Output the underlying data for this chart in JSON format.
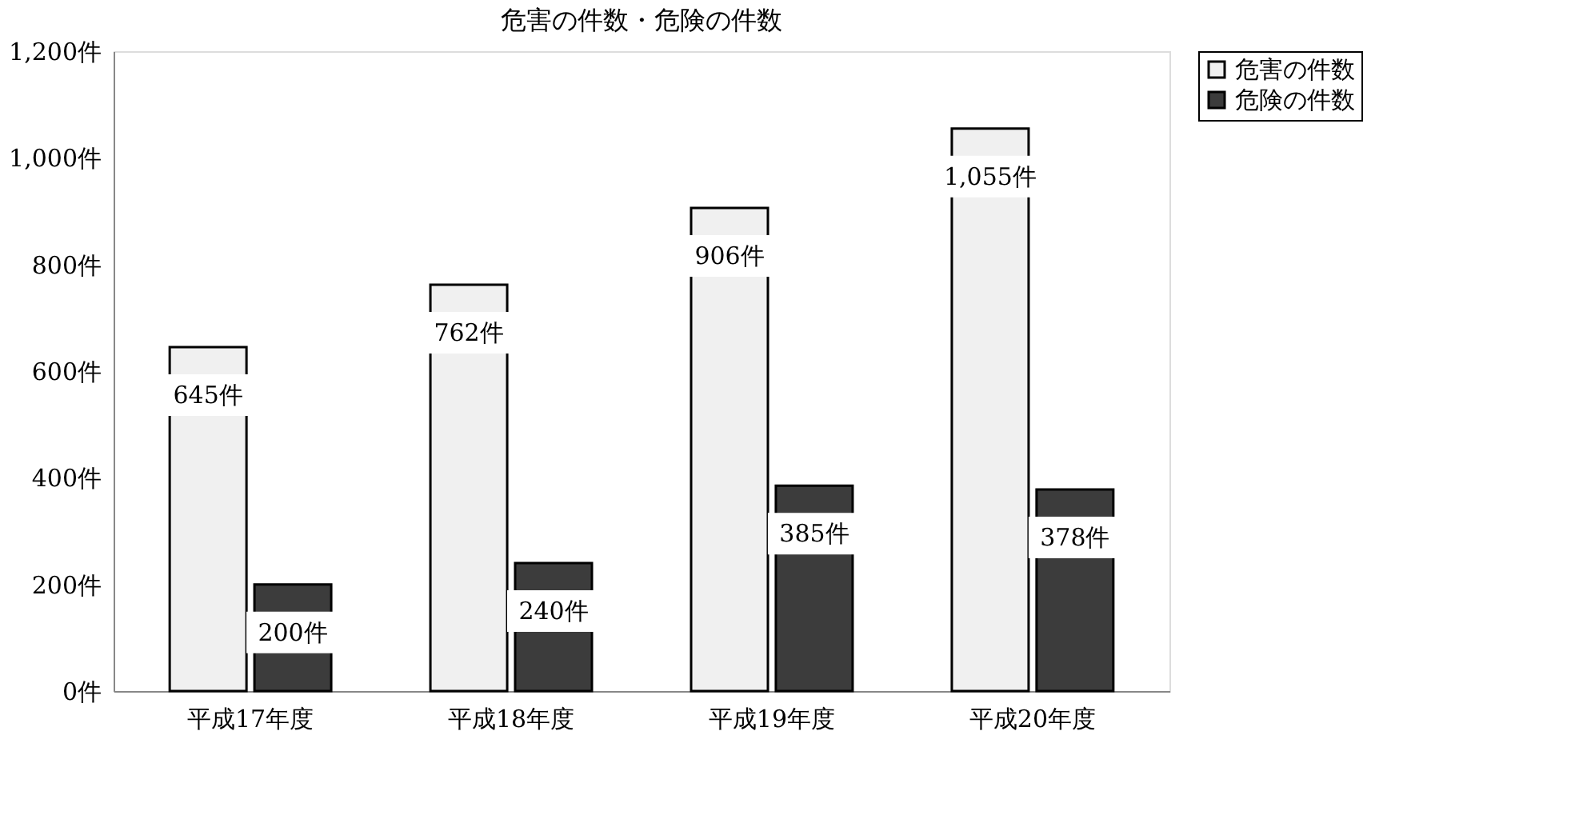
{
  "chart_data": {
    "type": "bar",
    "title": "危害の件数・危険の件数",
    "categories": [
      "平成17年度",
      "平成18年度",
      "平成19年度",
      "平成20年度"
    ],
    "series": [
      {
        "name": "危害の件数",
        "color": "#f0f0f0",
        "values": [
          645,
          762,
          906,
          1055
        ],
        "value_labels": [
          "645件",
          "762件",
          "906件",
          "1,055件"
        ]
      },
      {
        "name": "危険の件数",
        "color": "#3c3c3c",
        "values": [
          200,
          240,
          385,
          378
        ],
        "value_labels": [
          "200件",
          "240件",
          "385件",
          "378件"
        ]
      }
    ],
    "ylim": [
      0,
      1200
    ],
    "yticks": [
      {
        "value": 0,
        "label": "0件"
      },
      {
        "value": 200,
        "label": "200件"
      },
      {
        "value": 400,
        "label": "400件"
      },
      {
        "value": 600,
        "label": "600件"
      },
      {
        "value": 800,
        "label": "800件"
      },
      {
        "value": 1000,
        "label": "1,000件"
      },
      {
        "value": 1200,
        "label": "1,200件"
      }
    ],
    "grid": false,
    "legend": "right"
  }
}
